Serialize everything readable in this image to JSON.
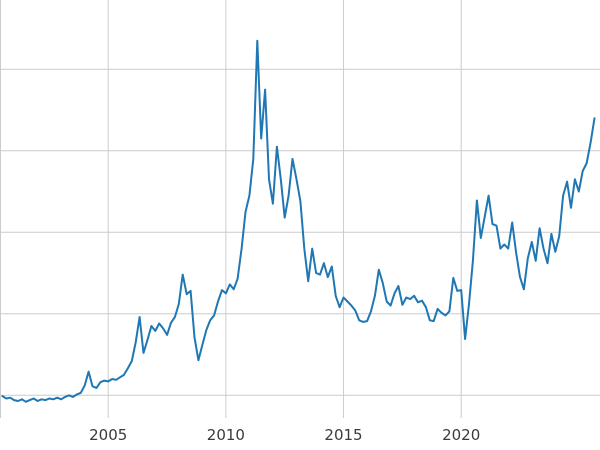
{
  "page": {
    "background_color": "#ffffff"
  },
  "chart_data": {
    "type": "line",
    "title": "",
    "xlabel": "",
    "ylabel": "",
    "grid": true,
    "legend": "none",
    "x_tick_labels": [
      "2005",
      "2010",
      "2015",
      "2020"
    ],
    "x_tick_values": [
      2005,
      2010,
      2015,
      2020
    ],
    "y_tick_values": [
      5,
      15,
      25,
      35,
      45
    ],
    "y_tick_labels": [],
    "xlim": [
      2000.4,
      2025.9
    ],
    "ylim": [
      0,
      53.5
    ],
    "colors": {
      "line": "#1f77b4",
      "grid": "#cccccc",
      "tick_label": "#3b3b3b",
      "background": "#ffffff"
    },
    "series": [
      {
        "name": "series_1",
        "color": "#1f77b4",
        "x_start": 2000.5,
        "x_step": 0.166667,
        "values": [
          4.9,
          4.6,
          4.7,
          4.4,
          4.3,
          4.5,
          4.2,
          4.4,
          4.6,
          4.3,
          4.5,
          4.4,
          4.6,
          4.5,
          4.7,
          4.5,
          4.8,
          5.0,
          4.8,
          5.1,
          5.3,
          6.2,
          7.9,
          6.1,
          5.9,
          6.6,
          6.8,
          6.7,
          7.0,
          6.9,
          7.2,
          7.5,
          8.3,
          9.2,
          11.5,
          14.6,
          10.2,
          11.8,
          13.5,
          12.9,
          13.8,
          13.2,
          12.4,
          13.9,
          14.6,
          16.2,
          19.8,
          17.4,
          17.8,
          12.1,
          9.3,
          11.2,
          13.0,
          14.2,
          14.8,
          16.5,
          17.9,
          17.5,
          18.6,
          18.0,
          19.3,
          23.0,
          27.5,
          29.5,
          34.0,
          48.5,
          36.5,
          42.5,
          31.5,
          28.5,
          35.5,
          31.5,
          26.8,
          29.5,
          34.0,
          31.5,
          28.8,
          23.0,
          19.0,
          23.0,
          20.0,
          19.8,
          21.2,
          19.5,
          20.8,
          17.2,
          15.8,
          17.0,
          16.5,
          16.0,
          15.4,
          14.2,
          14.0,
          14.1,
          15.3,
          17.2,
          20.4,
          18.8,
          16.5,
          16.0,
          17.5,
          18.4,
          16.1,
          17.0,
          16.8,
          17.2,
          16.4,
          16.6,
          15.8,
          14.2,
          14.1,
          15.6,
          15.1,
          14.8,
          15.3,
          19.4,
          17.8,
          17.9,
          11.9,
          16.2,
          21.5,
          28.9,
          24.3,
          26.9,
          29.5,
          26.0,
          25.8,
          23.0,
          23.5,
          23.0,
          26.2,
          22.5,
          19.5,
          18.0,
          21.8,
          23.8,
          21.5,
          25.5,
          23.0,
          21.2,
          24.8,
          22.6,
          24.5,
          29.5,
          31.2,
          28.0,
          31.5,
          30.0,
          32.5,
          33.5,
          36.0,
          39.0
        ]
      }
    ]
  }
}
